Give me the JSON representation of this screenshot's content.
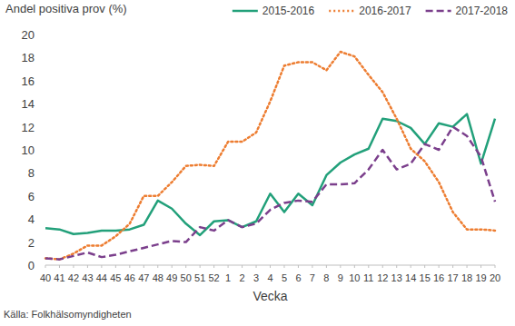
{
  "chart_data": {
    "type": "line",
    "y_label": "Andel positiva prov (%)",
    "x_label": "Vecka",
    "source": "Källa: Folkhälsomyndigheten",
    "categories": [
      "40",
      "41",
      "42",
      "43",
      "44",
      "45",
      "46",
      "47",
      "48",
      "49",
      "50",
      "51",
      "52",
      "1",
      "2",
      "3",
      "4",
      "5",
      "6",
      "7",
      "8",
      "9",
      "10",
      "11",
      "12",
      "13",
      "14",
      "15",
      "16",
      "17",
      "18",
      "19",
      "20"
    ],
    "series": [
      {
        "name": "2015-2016",
        "color": "#22a07a",
        "line_style": "solid",
        "values": [
          3.2,
          3.1,
          2.7,
          2.8,
          3.0,
          3.0,
          3.1,
          3.5,
          5.6,
          4.9,
          3.6,
          2.6,
          3.8,
          3.9,
          3.3,
          3.8,
          6.2,
          4.6,
          6.2,
          5.2,
          7.8,
          8.9,
          9.6,
          10.1,
          12.7,
          12.5,
          11.9,
          10.5,
          12.3,
          12.0,
          13.1,
          8.8,
          12.7
        ]
      },
      {
        "name": "2016-2017",
        "color": "#ed7d31",
        "line_style": "dotted",
        "values": [
          0.6,
          0.5,
          1.0,
          1.7,
          1.7,
          2.5,
          3.6,
          6.0,
          6.0,
          7.2,
          8.6,
          8.7,
          8.6,
          10.7,
          10.7,
          11.5,
          14.2,
          17.3,
          17.6,
          17.6,
          16.9,
          18.5,
          18.1,
          16.5,
          15.0,
          12.7,
          10.1,
          9.0,
          7.2,
          4.6,
          3.1,
          3.1,
          3.0
        ]
      },
      {
        "name": "2017-2018",
        "color": "#7b3f8c",
        "line_style": "dashed",
        "values": [
          0.6,
          0.5,
          0.8,
          1.1,
          0.7,
          0.9,
          1.2,
          1.5,
          1.8,
          2.1,
          2.0,
          3.3,
          3.0,
          3.9,
          3.3,
          3.6,
          4.8,
          5.4,
          5.6,
          5.5,
          7.0,
          7.0,
          7.1,
          8.3,
          10.0,
          8.3,
          8.8,
          10.5,
          10.0,
          12.0,
          11.2,
          9.4,
          5.5
        ]
      }
    ],
    "ylim": [
      0,
      20
    ],
    "yticks": [
      0,
      2,
      4,
      6,
      8,
      10,
      12,
      14,
      16,
      18,
      20
    ],
    "grid": false,
    "legend": "top-right"
  }
}
